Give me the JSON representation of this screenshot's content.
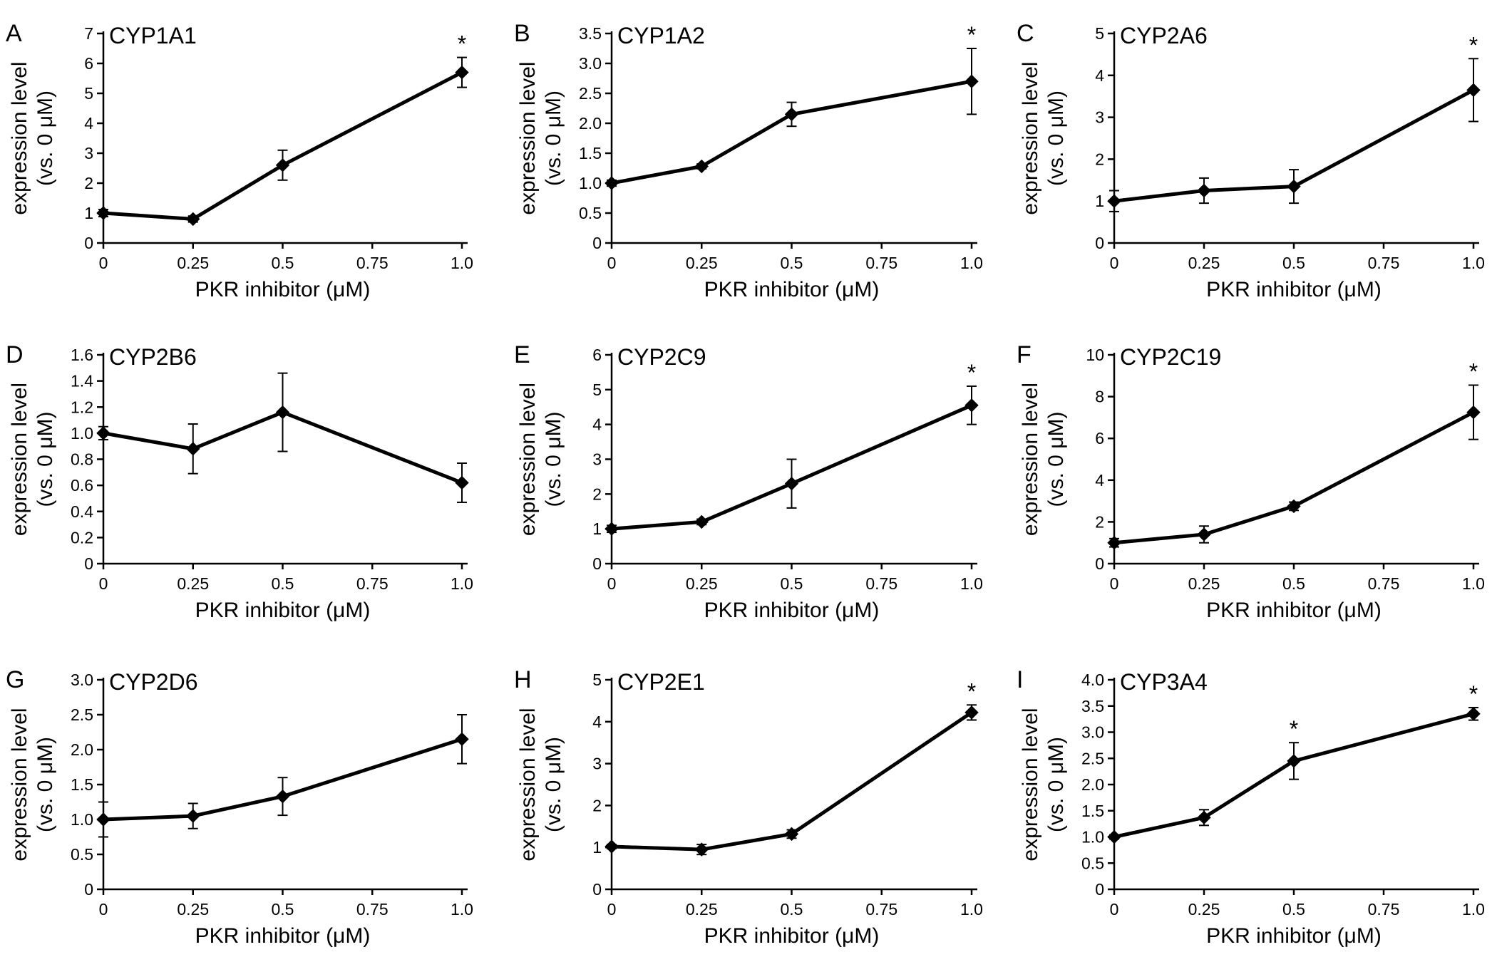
{
  "chart_data": [
    {
      "panel": "A",
      "title": "CYP1A1",
      "type": "line",
      "x": [
        0,
        0.25,
        0.5,
        1.0
      ],
      "xticks": [
        0,
        0.25,
        0.5,
        0.75,
        1.0
      ],
      "xtick_labels": [
        "0",
        "0.25",
        "0.5",
        "0.75",
        "1.0"
      ],
      "xlabel": "PKR inhibitor (μM)",
      "ylabel": [
        "expression level",
        "(vs. 0 μM)"
      ],
      "ylim": [
        0,
        7
      ],
      "yticks": [
        0,
        1,
        2,
        3,
        4,
        5,
        6,
        7
      ],
      "ytick_labels": [
        "0",
        "1",
        "2",
        "3",
        "4",
        "5",
        "6",
        "7"
      ],
      "values": [
        1.0,
        0.8,
        2.6,
        5.7
      ],
      "errors": [
        0.12,
        0.1,
        0.5,
        0.5
      ],
      "significance": [
        "",
        "",
        "",
        "*"
      ]
    },
    {
      "panel": "B",
      "title": "CYP1A2",
      "type": "line",
      "x": [
        0,
        0.25,
        0.5,
        1.0
      ],
      "xticks": [
        0,
        0.25,
        0.5,
        0.75,
        1.0
      ],
      "xtick_labels": [
        "0",
        "0.25",
        "0.5",
        "0.75",
        "1.0"
      ],
      "xlabel": "PKR inhibitor (μM)",
      "ylabel": [
        "expression level",
        "(vs. 0 μM)"
      ],
      "ylim": [
        0,
        3.5
      ],
      "yticks": [
        0,
        0.5,
        1.0,
        1.5,
        2.0,
        2.5,
        3.0,
        3.5
      ],
      "ytick_labels": [
        "0",
        "0.5",
        "1.0",
        "1.5",
        "2.0",
        "2.5",
        "3.0",
        "3.5"
      ],
      "values": [
        1.0,
        1.28,
        2.15,
        2.7
      ],
      "errors": [
        0.05,
        0.04,
        0.2,
        0.55
      ],
      "significance": [
        "",
        "",
        "",
        "*"
      ]
    },
    {
      "panel": "C",
      "title": "CYP2A6",
      "type": "line",
      "x": [
        0,
        0.25,
        0.5,
        1.0
      ],
      "xticks": [
        0,
        0.25,
        0.5,
        0.75,
        1.0
      ],
      "xtick_labels": [
        "0",
        "0.25",
        "0.5",
        "0.75",
        "1.0"
      ],
      "xlabel": "PKR inhibitor (μM)",
      "ylabel": [
        "expression level",
        "(vs. 0 μM)"
      ],
      "ylim": [
        0,
        5
      ],
      "yticks": [
        0,
        1,
        2,
        3,
        4,
        5
      ],
      "ytick_labels": [
        "0",
        "1",
        "2",
        "3",
        "4",
        "5"
      ],
      "values": [
        1.0,
        1.25,
        1.35,
        3.65
      ],
      "errors": [
        0.25,
        0.3,
        0.4,
        0.75
      ],
      "significance": [
        "",
        "",
        "",
        "*"
      ]
    },
    {
      "panel": "D",
      "title": "CYP2B6",
      "type": "line",
      "x": [
        0,
        0.25,
        0.5,
        1.0
      ],
      "xticks": [
        0,
        0.25,
        0.5,
        0.75,
        1.0
      ],
      "xtick_labels": [
        "0",
        "0.25",
        "0.5",
        "0.75",
        "1.0"
      ],
      "xlabel": "PKR inhibitor (μM)",
      "ylabel": [
        "expression level",
        "(vs. 0 μM)"
      ],
      "ylim": [
        0,
        1.6
      ],
      "yticks": [
        0,
        0.2,
        0.4,
        0.6,
        0.8,
        1.0,
        1.2,
        1.4,
        1.6
      ],
      "ytick_labels": [
        "0",
        "0.2",
        "0.4",
        "0.6",
        "0.8",
        "1.0",
        "1.2",
        "1.4",
        "1.6"
      ],
      "values": [
        1.0,
        0.88,
        1.16,
        0.62
      ],
      "errors": [
        0.05,
        0.19,
        0.3,
        0.15
      ],
      "significance": [
        "",
        "",
        "",
        ""
      ]
    },
    {
      "panel": "E",
      "title": "CYP2C9",
      "type": "line",
      "x": [
        0,
        0.25,
        0.5,
        1.0
      ],
      "xticks": [
        0,
        0.25,
        0.5,
        0.75,
        1.0
      ],
      "xtick_labels": [
        "0",
        "0.25",
        "0.5",
        "0.75",
        "1.0"
      ],
      "xlabel": "PKR inhibitor (μM)",
      "ylabel": [
        "expression level",
        "(vs. 0 μM)"
      ],
      "ylim": [
        0,
        6
      ],
      "yticks": [
        0,
        1,
        2,
        3,
        4,
        5,
        6
      ],
      "ytick_labels": [
        "0",
        "1",
        "2",
        "3",
        "4",
        "5",
        "6"
      ],
      "values": [
        1.0,
        1.2,
        2.3,
        4.55
      ],
      "errors": [
        0.1,
        0.08,
        0.7,
        0.55
      ],
      "significance": [
        "",
        "",
        "",
        "*"
      ]
    },
    {
      "panel": "F",
      "title": "CYP2C19",
      "type": "line",
      "x": [
        0,
        0.25,
        0.5,
        1.0
      ],
      "xticks": [
        0,
        0.25,
        0.5,
        0.75,
        1.0
      ],
      "xtick_labels": [
        "0",
        "0.25",
        "0.5",
        "0.75",
        "1.0"
      ],
      "xlabel": "PKR inhibitor (μM)",
      "ylabel": [
        "expression level",
        "(vs. 0 μM)"
      ],
      "ylim": [
        0,
        10
      ],
      "yticks": [
        0,
        2,
        4,
        6,
        8,
        10
      ],
      "ytick_labels": [
        "0",
        "2",
        "4",
        "6",
        "8",
        "10"
      ],
      "values": [
        1.0,
        1.4,
        2.75,
        7.25
      ],
      "errors": [
        0.2,
        0.4,
        0.2,
        1.3
      ],
      "significance": [
        "",
        "",
        "",
        "*"
      ]
    },
    {
      "panel": "G",
      "title": "CYP2D6",
      "type": "line",
      "x": [
        0,
        0.25,
        0.5,
        1.0
      ],
      "xticks": [
        0,
        0.25,
        0.5,
        0.75,
        1.0
      ],
      "xtick_labels": [
        "0",
        "0.25",
        "0.5",
        "0.75",
        "1.0"
      ],
      "xlabel": "PKR inhibitor (μM)",
      "ylabel": [
        "expression level",
        "(vs. 0 μM)"
      ],
      "ylim": [
        0,
        3.0
      ],
      "yticks": [
        0,
        0.5,
        1.0,
        1.5,
        2.0,
        2.5,
        3.0
      ],
      "ytick_labels": [
        "0",
        "0.5",
        "1.0",
        "1.5",
        "2.0",
        "2.5",
        "3.0"
      ],
      "values": [
        1.0,
        1.05,
        1.33,
        2.15
      ],
      "errors": [
        0.25,
        0.18,
        0.27,
        0.35
      ],
      "significance": [
        "",
        "",
        "",
        ""
      ]
    },
    {
      "panel": "H",
      "title": "CYP2E1",
      "type": "line",
      "x": [
        0,
        0.25,
        0.5,
        1.0
      ],
      "xticks": [
        0,
        0.25,
        0.5,
        0.75,
        1.0
      ],
      "xtick_labels": [
        "0",
        "0.25",
        "0.5",
        "0.75",
        "1.0"
      ],
      "xlabel": "PKR inhibitor (μM)",
      "ylabel": [
        "expression level",
        "(vs. 0 μM)"
      ],
      "ylim": [
        0,
        5
      ],
      "yticks": [
        0,
        1,
        2,
        3,
        4,
        5
      ],
      "ytick_labels": [
        "0",
        "1",
        "2",
        "3",
        "4",
        "5"
      ],
      "values": [
        1.02,
        0.95,
        1.32,
        4.22
      ],
      "errors": [
        0.05,
        0.12,
        0.1,
        0.18
      ],
      "significance": [
        "",
        "",
        "",
        "*"
      ]
    },
    {
      "panel": "I",
      "title": "CYP3A4",
      "type": "line",
      "x": [
        0,
        0.25,
        0.5,
        1.0
      ],
      "xticks": [
        0,
        0.25,
        0.5,
        0.75,
        1.0
      ],
      "xtick_labels": [
        "0",
        "0.25",
        "0.5",
        "0.75",
        "1.0"
      ],
      "xlabel": "PKR inhibitor (μM)",
      "ylabel": [
        "expression level",
        "(vs. 0 μM)"
      ],
      "ylim": [
        0,
        4.0
      ],
      "yticks": [
        0,
        0.5,
        1.0,
        1.5,
        2.0,
        2.5,
        3.0,
        3.5,
        4.0
      ],
      "ytick_labels": [
        "0",
        "0.5",
        "1.0",
        "1.5",
        "2.0",
        "2.5",
        "3.0",
        "3.5",
        "4.0"
      ],
      "values": [
        1.0,
        1.37,
        2.45,
        3.35
      ],
      "errors": [
        0.04,
        0.15,
        0.35,
        0.12
      ],
      "significance": [
        "",
        "",
        "*",
        "*"
      ]
    }
  ]
}
